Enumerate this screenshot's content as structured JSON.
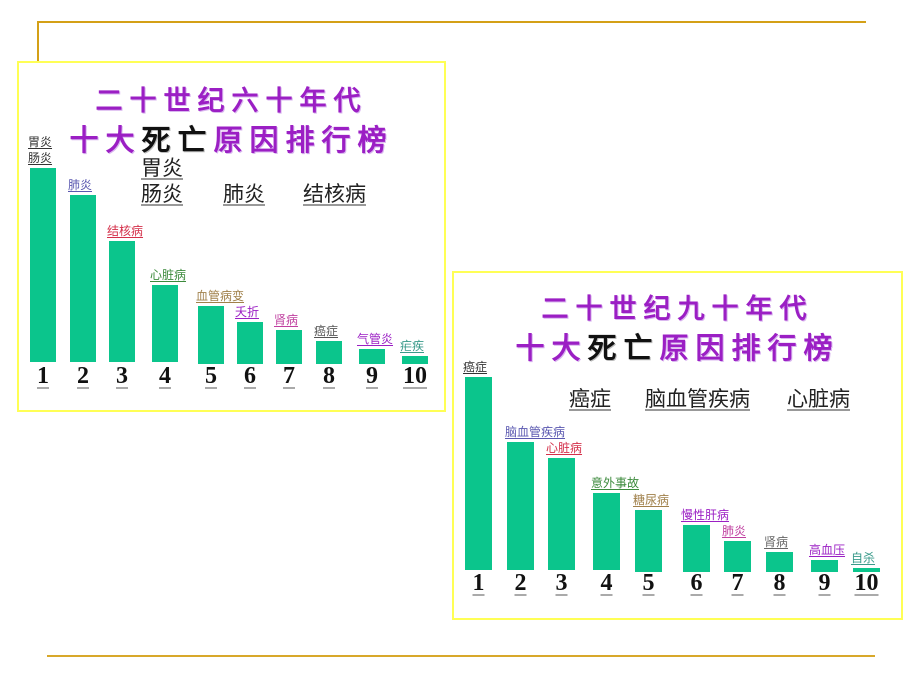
{
  "slide": {
    "frame_color": "#d4a017",
    "panel_border_color": "#ffff55",
    "bar_color": "#0bc58c",
    "title_color": "#9b1fc4"
  },
  "chart_data": [
    {
      "type": "bar",
      "title": "二十世纪六十年代 十大死亡原因排行榜",
      "title_line1": "二十世纪六十年代",
      "title_line2_a": "十大",
      "title_line2_b": "死亡",
      "title_line2_c": "原因排行榜",
      "summary": [
        "胃炎肠炎",
        "肺炎",
        "结核病"
      ],
      "summary_stack": [
        "胃炎",
        "肠炎"
      ],
      "xlabel": "",
      "ylabel": "",
      "categories": [
        "1",
        "2",
        "3",
        "4",
        "5",
        "6",
        "7",
        "8",
        "9",
        "10"
      ],
      "labels": [
        "胃炎肠炎",
        "肺炎",
        "结核病",
        "心脏病",
        "血管病变",
        "夭折",
        "肾病",
        "癌症",
        "气管炎",
        "疟疾"
      ],
      "label_lines": [
        [
          "胃炎",
          "肠炎"
        ],
        [
          "肺炎"
        ],
        [
          "结核病"
        ],
        [
          "心脏病"
        ],
        [
          "血管病变"
        ],
        [
          "夭折"
        ],
        [
          "肾病"
        ],
        [
          "癌症"
        ],
        [
          "气管炎"
        ],
        [
          "疟疾"
        ]
      ],
      "label_colors": [
        "#333333",
        "#5a58b0",
        "#d4304a",
        "#3c8a3c",
        "#a0804a",
        "#9b1fc4",
        "#c040a0",
        "#555555",
        "#9b1fc4",
        "#3a9a8a"
      ],
      "values": [
        194,
        167,
        121,
        77,
        58,
        42,
        34,
        23,
        15,
        8
      ],
      "value_units": "relative bar height (px, no axis shown)",
      "grid": false,
      "legend": false
    },
    {
      "type": "bar",
      "title": "二十世纪九十年代 十大死亡原因排行榜",
      "title_line1": "二十世纪九十年代",
      "title_line2_a": "十大",
      "title_line2_b": "死亡",
      "title_line2_c": "原因排行榜",
      "summary": [
        "癌症",
        "脑血管疾病",
        "心脏病"
      ],
      "xlabel": "",
      "ylabel": "",
      "categories": [
        "1",
        "2",
        "3",
        "4",
        "5",
        "6",
        "7",
        "8",
        "9",
        "10"
      ],
      "labels": [
        "癌症",
        "脑血管疾病",
        "心脏病",
        "意外事故",
        "糖尿病",
        "慢性肝病",
        "肺炎",
        "肾病",
        "高血压",
        "自杀"
      ],
      "label_lines": [
        [
          "癌症"
        ],
        [
          "脑血管疾病"
        ],
        [
          "心脏病"
        ],
        [
          "意外事故"
        ],
        [
          "糖尿病"
        ],
        [
          "慢性肝病"
        ],
        [
          "肺炎"
        ],
        [
          "肾病"
        ],
        [
          "高血压"
        ],
        [
          "自杀"
        ]
      ],
      "label_colors": [
        "#333333",
        "#5a58b0",
        "#d4304a",
        "#3c8a3c",
        "#a0804a",
        "#9b1fc4",
        "#c040a0",
        "#666666",
        "#9b1fc4",
        "#3a9a8a"
      ],
      "values": [
        193,
        128,
        112,
        77,
        62,
        47,
        31,
        20,
        12,
        4
      ],
      "value_units": "relative bar height (px, no axis shown)",
      "grid": false,
      "legend": false
    }
  ]
}
